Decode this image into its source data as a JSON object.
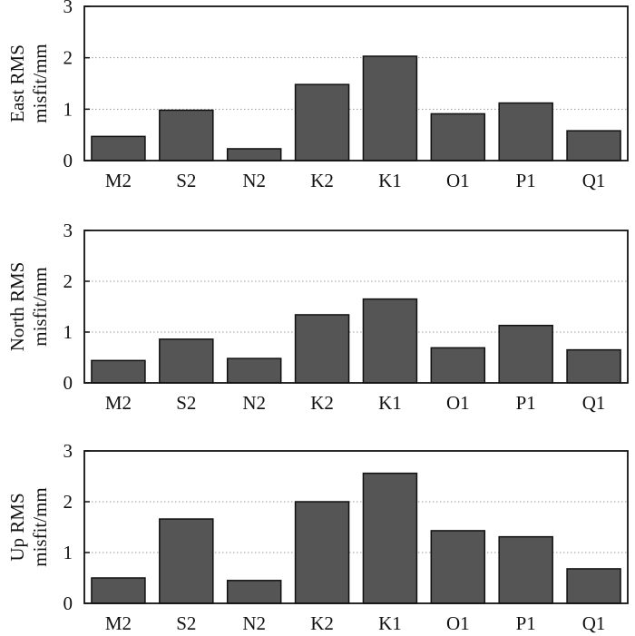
{
  "chart_data": [
    {
      "type": "bar",
      "title": "",
      "xlabel": "",
      "ylabel_lines": [
        "East RMS",
        "misfit/mm"
      ],
      "categories": [
        "M2",
        "S2",
        "N2",
        "K2",
        "K1",
        "O1",
        "P1",
        "Q1"
      ],
      "values": [
        0.47,
        0.98,
        0.23,
        1.48,
        2.03,
        0.91,
        1.12,
        0.58
      ],
      "ylim": [
        0,
        3
      ],
      "yticks": [
        "0",
        "1",
        "2",
        "3"
      ],
      "grid": true
    },
    {
      "type": "bar",
      "title": "",
      "xlabel": "",
      "ylabel_lines": [
        "North RMS",
        "misfit/mm"
      ],
      "categories": [
        "M2",
        "S2",
        "N2",
        "K2",
        "K1",
        "O1",
        "P1",
        "Q1"
      ],
      "values": [
        0.44,
        0.86,
        0.48,
        1.34,
        1.65,
        0.69,
        1.13,
        0.65
      ],
      "ylim": [
        0,
        3
      ],
      "yticks": [
        "0",
        "1",
        "2",
        "3"
      ],
      "grid": true
    },
    {
      "type": "bar",
      "title": "",
      "xlabel": "",
      "ylabel_lines": [
        "Up RMS",
        "misfit/mm"
      ],
      "categories": [
        "M2",
        "S2",
        "N2",
        "K2",
        "K1",
        "O1",
        "P1",
        "Q1"
      ],
      "values": [
        0.5,
        1.66,
        0.45,
        2.0,
        2.56,
        1.43,
        1.31,
        0.68
      ],
      "ylim": [
        0,
        3
      ],
      "yticks": [
        "0",
        "1",
        "2",
        "3"
      ],
      "grid": true
    }
  ],
  "colors": {
    "bar_fill": "#555555",
    "bar_edge": "#111111",
    "grid": "#999999"
  }
}
